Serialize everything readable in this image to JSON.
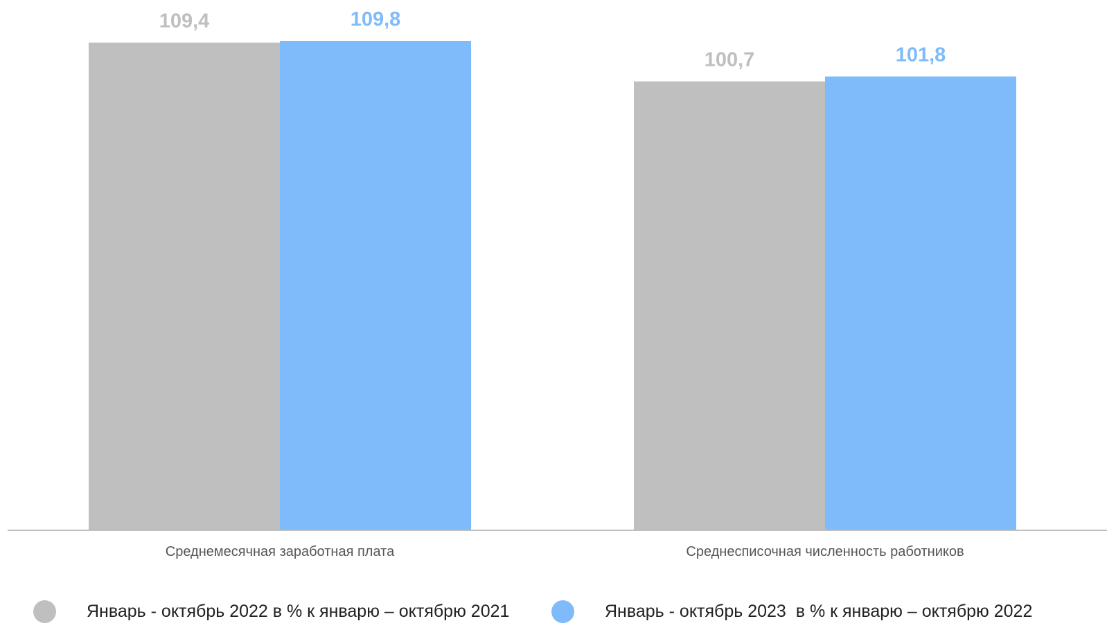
{
  "chart_data": {
    "type": "bar",
    "categories": [
      "Среднемесячная заработная плата",
      "Среднесписочная численность работников"
    ],
    "series": [
      {
        "name": "Январь - октябрь 2022 в % к январю – октябрю 2021",
        "values": [
          109.4,
          100.7
        ],
        "labels": [
          "109,4",
          "100,7"
        ],
        "color": "#bfbfbf",
        "label_color": "#bfbfbf"
      },
      {
        "name": "Январь - октябрь 2023  в % к январю – октябрю 2022",
        "values": [
          109.8,
          101.8
        ],
        "labels": [
          "109,8",
          "101,8"
        ],
        "color": "#7fbbfa",
        "label_color": "#7fbbfa"
      }
    ],
    "ylim": [
      0,
      109.8
    ],
    "grid": false,
    "legend_position": "bottom"
  }
}
